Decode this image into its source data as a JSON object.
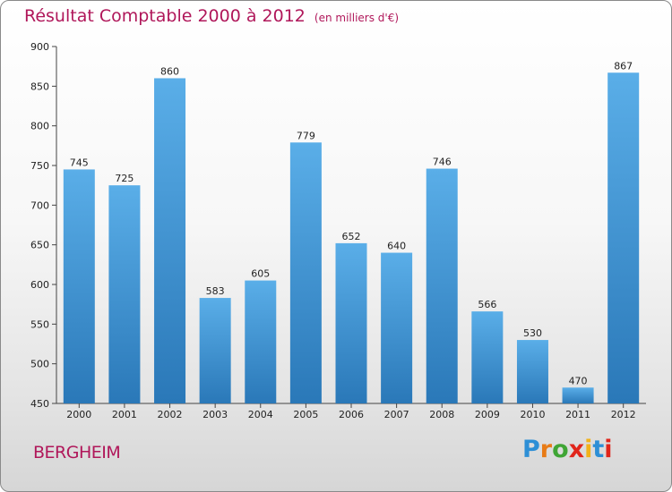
{
  "title": "Résultat Comptable 2000 à 2012",
  "subtitle": "(en milliers d'€)",
  "commune": "BERGHEIM",
  "logo": {
    "letters": [
      "P",
      "r",
      "o",
      "x",
      "i",
      "t",
      "i"
    ],
    "colors": [
      "#2d8fd6",
      "#e87b16",
      "#3fa535",
      "#e1251b",
      "#f2b21a",
      "#2d8fd6",
      "#e1251b"
    ]
  },
  "chart_data": {
    "type": "bar",
    "title": "Résultat Comptable 2000 à 2012",
    "subtitle": "(en milliers d'€)",
    "xlabel": "",
    "ylabel": "",
    "categories": [
      "2000",
      "2001",
      "2002",
      "2003",
      "2004",
      "2005",
      "2006",
      "2007",
      "2008",
      "2009",
      "2010",
      "2011",
      "2012"
    ],
    "values": [
      745,
      725,
      860,
      583,
      605,
      779,
      652,
      640,
      746,
      566,
      530,
      470,
      867
    ],
    "ylim": [
      450,
      900
    ],
    "yticks": [
      450,
      500,
      550,
      600,
      650,
      700,
      750,
      800,
      850,
      900
    ],
    "grid": false,
    "bar_color": "#3d95d8"
  }
}
